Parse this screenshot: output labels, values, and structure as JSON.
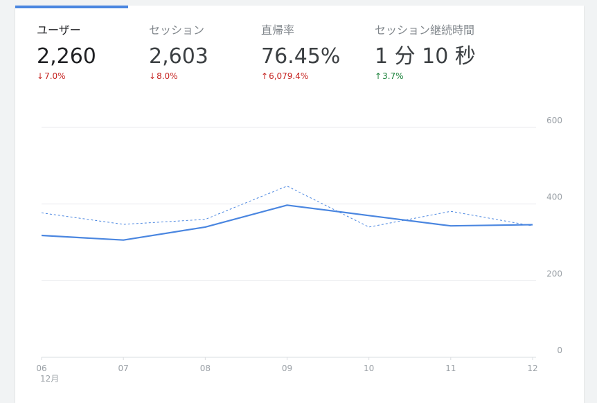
{
  "metrics": [
    {
      "label": "ユーザー",
      "value": "2,260",
      "change": "7.0%",
      "direction": "down",
      "change_color": "#c5221f",
      "selected": true
    },
    {
      "label": "セッション",
      "value": "2,603",
      "change": "8.0%",
      "direction": "down",
      "change_color": "#c5221f",
      "selected": false
    },
    {
      "label": "直帰率",
      "value": "76.45%",
      "change": "6,079.4%",
      "direction": "up",
      "change_color": "#c5221f",
      "selected": false
    },
    {
      "label": "セッション継続時間",
      "value": "1 分 10 秒",
      "change": "3.7%",
      "direction": "up",
      "change_color": "#188038",
      "selected": false
    }
  ],
  "icons": {
    "down_arrow": "arrow-down-icon",
    "up_arrow": "arrow-up-icon"
  },
  "colors": {
    "accent": "#4a86e0",
    "negative": "#c5221f",
    "positive": "#188038",
    "primary_series": "#4a86e0",
    "comparison_series": "#4a86e0"
  },
  "chart_data": {
    "type": "line",
    "x": [
      "06",
      "07",
      "08",
      "09",
      "10",
      "11",
      "12"
    ],
    "x_sublabel": "12月",
    "series": [
      {
        "style": "solid",
        "values": [
          318,
          306,
          340,
          397,
          370,
          343,
          346
        ]
      },
      {
        "style": "dashed",
        "values": [
          377,
          347,
          360,
          447,
          340,
          381,
          343
        ]
      }
    ],
    "y_ticks": [
      0,
      200,
      400,
      600
    ],
    "ylim": [
      0,
      600
    ],
    "y_axis_side": "right",
    "grid": true,
    "legend": "none"
  }
}
